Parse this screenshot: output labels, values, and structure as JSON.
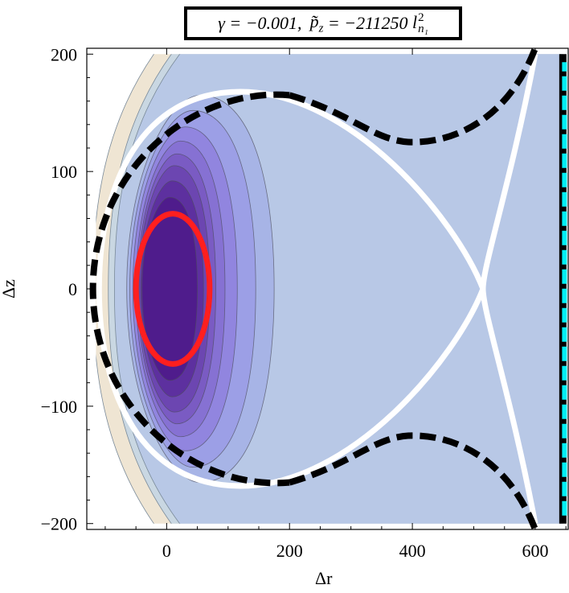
{
  "title": {
    "gamma_part": "γ = −0.001,",
    "p_symbol": "p̃",
    "p_sub": "z",
    "p_value_part": " = −211250 ",
    "l_symbol": "l",
    "l_sup": "2",
    "l_sub": "n₁"
  },
  "chart_data": {
    "type": "contour",
    "title": "γ = −0.001, p̃z = −211250 l²n₁",
    "xlabel": "Δr",
    "ylabel": "Δz",
    "xlim": [
      -130,
      655
    ],
    "ylim": [
      -205,
      205
    ],
    "xticks": [
      0,
      200,
      400,
      600
    ],
    "yticks": [
      -200,
      -100,
      0,
      100,
      200
    ],
    "xtick_labels": [
      "0",
      "200",
      "400",
      "600"
    ],
    "ytick_labels": [
      "−200",
      "−100",
      "0",
      "100",
      "200"
    ],
    "filled_region": {
      "x": [
        -115,
        645
      ],
      "y": [
        -200,
        200
      ]
    },
    "contour_center": {
      "x": 5,
      "y": 0
    },
    "contour_levels": [
      {
        "x_left": -120,
        "x_right": 2000,
        "y_half": 1000000000.0,
        "color": "#efe5d3"
      },
      {
        "x_left": -95,
        "x_right": 2000,
        "y_half": 1000000000.0,
        "color": "#c9d7e2"
      },
      {
        "x_left": -85,
        "x_right": 2000,
        "y_half": 1000000000.0,
        "color": "#b8c8e6"
      },
      {
        "x_left": -65,
        "x_right": 175,
        "y_half": 165,
        "color": "#a7b4e6"
      },
      {
        "x_left": -60,
        "x_right": 145,
        "y_half": 152,
        "color": "#9c9fe6"
      },
      {
        "x_left": -55,
        "x_right": 115,
        "y_half": 138,
        "color": "#9185df"
      },
      {
        "x_left": -50,
        "x_right": 95,
        "y_half": 126,
        "color": "#8671d3"
      },
      {
        "x_left": -47,
        "x_right": 80,
        "y_half": 115,
        "color": "#7a5bc3"
      },
      {
        "x_left": -45,
        "x_right": 70,
        "y_half": 105,
        "color": "#6c46b1"
      },
      {
        "x_left": -42,
        "x_right": 60,
        "y_half": 92,
        "color": "#5d309f"
      },
      {
        "x_left": -40,
        "x_right": 50,
        "y_half": 78,
        "color": "#4f1c8c"
      }
    ],
    "red_ellipse": {
      "cx": 10,
      "cy": 0,
      "rx": 60,
      "ry": 64,
      "color": "#ff1f1f"
    },
    "white_separatrix": {
      "loop_left_x": -110,
      "loop_top_y": 168,
      "saddle": {
        "x": 515,
        "y": 0
      },
      "end_x": 600,
      "end_y": 200,
      "color": "#ffffff"
    },
    "black_dashed_curves": {
      "inner_left_x": -120,
      "inner_top_y": 170,
      "upper_branch": {
        "min_x": 400,
        "min_y": 125,
        "end_x": 600,
        "end_y": 205
      },
      "lower_branch": {
        "min_x": 400,
        "min_y": -125,
        "end_x": 600,
        "end_y": -205
      },
      "color": "#000000"
    },
    "cyan_dashed_line": {
      "x": 645,
      "y_range": [
        -200,
        200
      ],
      "color": "#00f0f5"
    },
    "grid": false,
    "legend": "none"
  }
}
